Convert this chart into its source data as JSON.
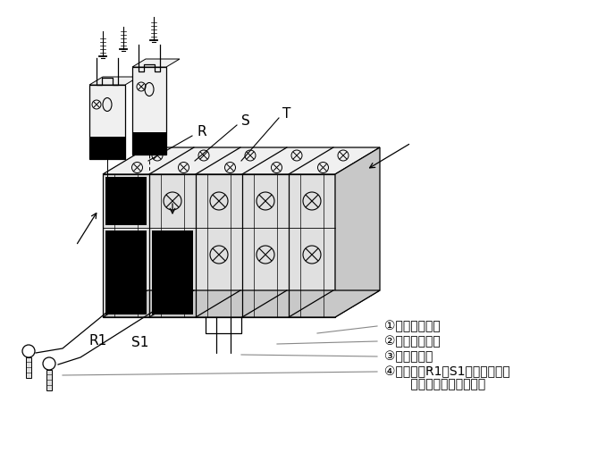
{
  "bg": "#ffffff",
  "lc": "#000000",
  "gray_light": "#f0f0f0",
  "gray_mid": "#e0e0e0",
  "gray_dark": "#c8c8c8",
  "annotations": [
    "①拧松上排色丝",
    "②取出下排色丝",
    "③取出短路片",
    "④用导线将R1、S1端子与断路器",
    "    输入侧的两相电源连接"
  ],
  "label_R": "R",
  "label_S": "S",
  "label_T": "T",
  "label_R1": "R1",
  "label_S1": "S1",
  "font_label": 11,
  "font_ann": 10
}
